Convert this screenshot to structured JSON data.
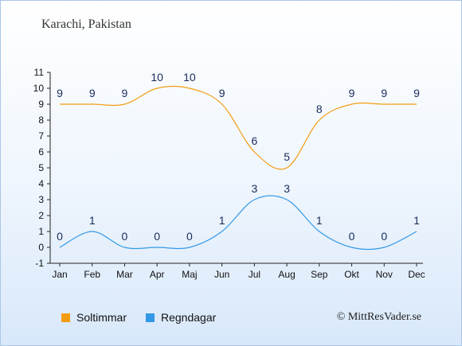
{
  "header": {
    "location": "Karachi, Pakistan"
  },
  "legend": [
    {
      "label": "Soltimmar",
      "color": "#f39c12"
    },
    {
      "label": "Regndagar",
      "color": "#3399e6"
    }
  ],
  "credit": "© MittResVader.se",
  "chart_data": {
    "type": "line",
    "title": "",
    "xlabel": "",
    "ylabel": "",
    "categories": [
      "Jan",
      "Feb",
      "Mar",
      "Apr",
      "Maj",
      "Jun",
      "Jul",
      "Aug",
      "Sep",
      "Okt",
      "Nov",
      "Dec"
    ],
    "ylim": [
      -1,
      11
    ],
    "yticks": [
      -1,
      0,
      1,
      2,
      3,
      4,
      5,
      6,
      7,
      8,
      9,
      10,
      11
    ],
    "grid": false,
    "legend_position": "bottom-left",
    "series": [
      {
        "name": "Soltimmar",
        "color": "#f39c12",
        "values": [
          9,
          9,
          9,
          10,
          10,
          9,
          6,
          5,
          8,
          9,
          9,
          9
        ]
      },
      {
        "name": "Regndagar",
        "color": "#3399e6",
        "values": [
          0,
          1,
          0,
          0,
          0,
          1,
          3,
          3,
          1,
          0,
          0,
          1
        ]
      }
    ]
  }
}
